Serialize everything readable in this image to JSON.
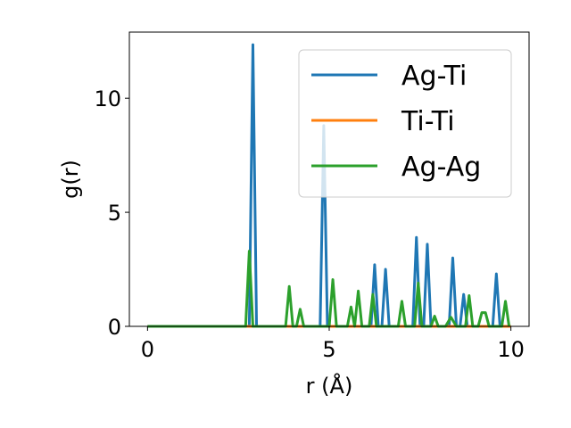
{
  "chart_data": {
    "type": "line",
    "xlabel": "r (Å)",
    "ylabel": "g(r)",
    "xlim": [
      -0.5,
      10.5
    ],
    "ylim": [
      0,
      12.9
    ],
    "xticks": [
      0,
      5,
      10
    ],
    "yticks": [
      0,
      5,
      10
    ],
    "grid": false,
    "legend_position": "top-right",
    "series": [
      {
        "name": "Ag-Ti",
        "color": "#1f77b4",
        "points": [
          [
            0,
            0
          ],
          [
            2.7,
            0
          ],
          [
            2.8,
            0
          ],
          [
            2.9,
            12.35
          ],
          [
            3.0,
            0
          ],
          [
            4.75,
            0
          ],
          [
            4.85,
            8.8
          ],
          [
            4.95,
            0
          ],
          [
            6.15,
            0
          ],
          [
            6.25,
            2.7
          ],
          [
            6.35,
            0
          ],
          [
            6.45,
            0
          ],
          [
            6.55,
            2.5
          ],
          [
            6.65,
            0
          ],
          [
            7.3,
            0
          ],
          [
            7.4,
            3.9
          ],
          [
            7.5,
            0
          ],
          [
            7.6,
            0
          ],
          [
            7.7,
            3.6
          ],
          [
            7.8,
            0
          ],
          [
            8.3,
            0
          ],
          [
            8.4,
            3.0
          ],
          [
            8.5,
            0
          ],
          [
            8.6,
            0
          ],
          [
            8.7,
            1.4
          ],
          [
            8.8,
            0
          ],
          [
            9.5,
            0
          ],
          [
            9.6,
            2.3
          ],
          [
            9.7,
            0
          ],
          [
            10.0,
            0
          ]
        ]
      },
      {
        "name": "Ti-Ti",
        "color": "#ff7f0e",
        "points": [
          [
            0,
            0
          ],
          [
            10.0,
            0
          ]
        ]
      },
      {
        "name": "Ag-Ag",
        "color": "#2ca02c",
        "points": [
          [
            0,
            0
          ],
          [
            2.7,
            0
          ],
          [
            2.8,
            3.3
          ],
          [
            2.9,
            0
          ],
          [
            3.8,
            0
          ],
          [
            3.9,
            1.75
          ],
          [
            4.0,
            0
          ],
          [
            4.1,
            0
          ],
          [
            4.2,
            0.75
          ],
          [
            4.3,
            0
          ],
          [
            5.0,
            0
          ],
          [
            5.1,
            2.05
          ],
          [
            5.2,
            0
          ],
          [
            5.5,
            0
          ],
          [
            5.6,
            0.85
          ],
          [
            5.7,
            0
          ],
          [
            5.8,
            1.55
          ],
          [
            5.9,
            0
          ],
          [
            6.1,
            0
          ],
          [
            6.2,
            1.4
          ],
          [
            6.3,
            0
          ],
          [
            6.9,
            0
          ],
          [
            7.0,
            1.1
          ],
          [
            7.1,
            0
          ],
          [
            7.35,
            0
          ],
          [
            7.45,
            1.9
          ],
          [
            7.55,
            0
          ],
          [
            7.8,
            0
          ],
          [
            7.9,
            0.45
          ],
          [
            8.0,
            0
          ],
          [
            8.2,
            0
          ],
          [
            8.35,
            0.4
          ],
          [
            8.5,
            0
          ],
          [
            8.75,
            0
          ],
          [
            8.85,
            1.35
          ],
          [
            8.95,
            0
          ],
          [
            9.1,
            0
          ],
          [
            9.2,
            0.6
          ],
          [
            9.3,
            0.6
          ],
          [
            9.4,
            0
          ],
          [
            9.75,
            0
          ],
          [
            9.85,
            1.1
          ],
          [
            9.95,
            0
          ]
        ]
      }
    ]
  }
}
